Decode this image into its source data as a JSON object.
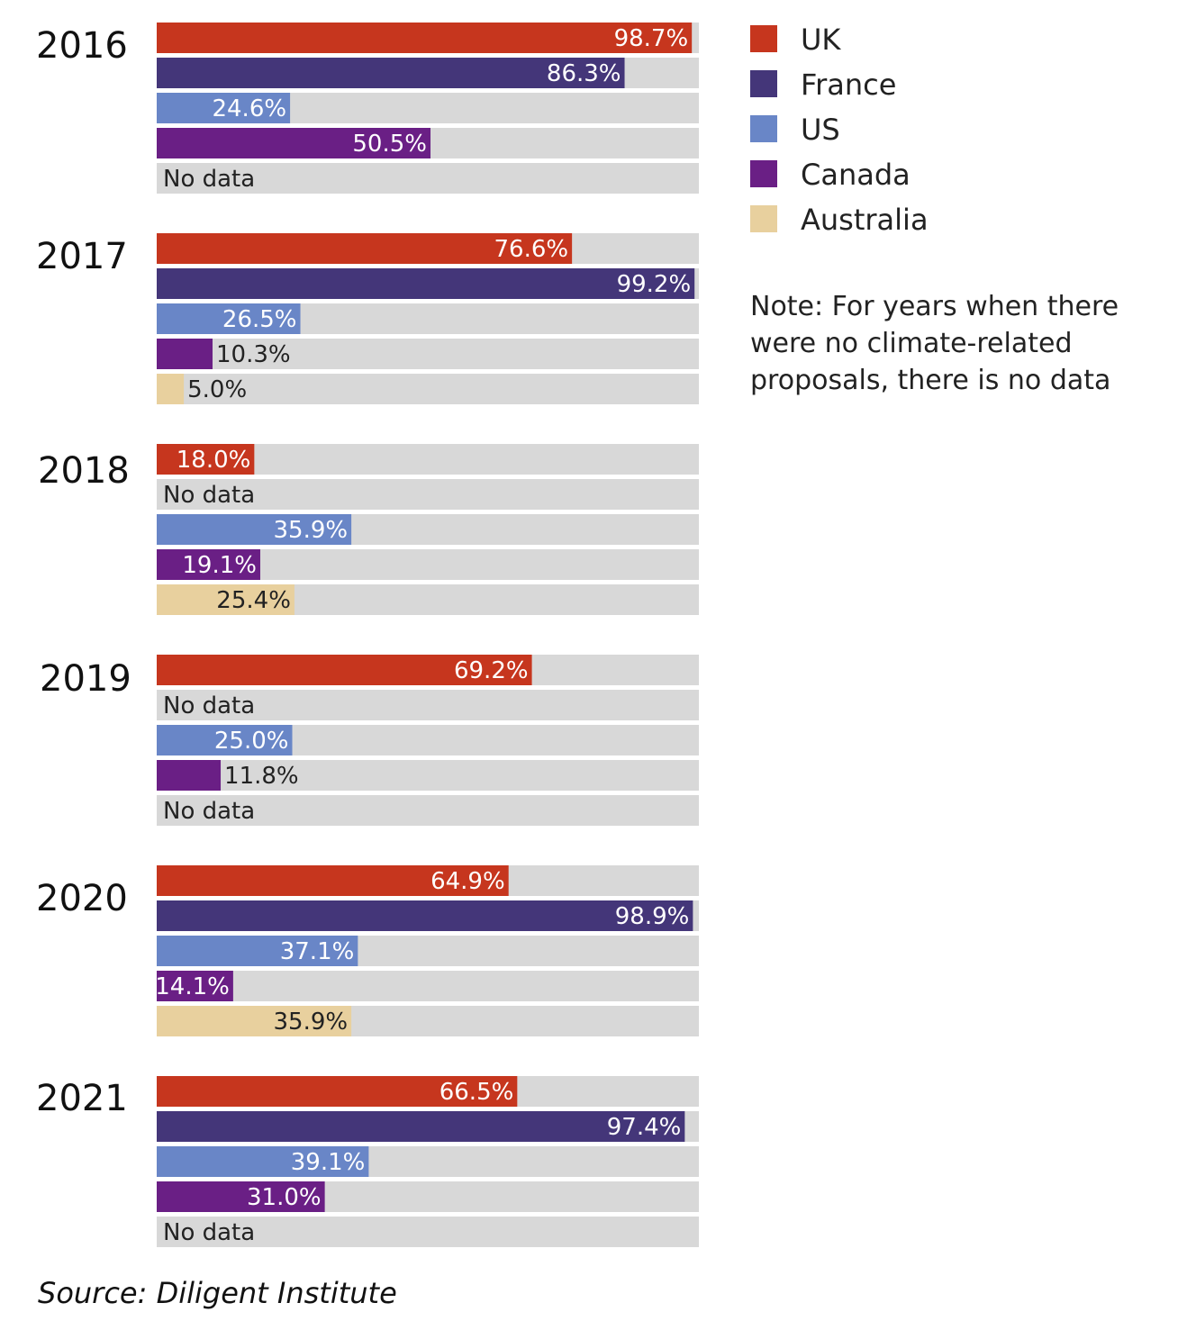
{
  "colors": {
    "UK": "#c6361e",
    "France": "#443679",
    "US": "#6986c7",
    "Canada": "#6a1f85",
    "Australia": "#e8d09e",
    "track": "#d8d8d8"
  },
  "no_data_label": "No data",
  "note_lines": [
    "Note: For years when there",
    "were no climate-related",
    "proposals, there is no data"
  ],
  "source": "Source: Diligent Institute",
  "chart_data": {
    "type": "bar",
    "orientation": "horizontal",
    "x_range": [
      0,
      100
    ],
    "unit": "%",
    "grid": false,
    "legend_position": "top-right",
    "series": [
      {
        "name": "UK",
        "values": [
          98.7,
          76.6,
          18.0,
          69.2,
          64.9,
          66.5
        ]
      },
      {
        "name": "France",
        "values": [
          86.3,
          99.2,
          null,
          null,
          98.9,
          97.4
        ]
      },
      {
        "name": "US",
        "values": [
          24.6,
          26.5,
          35.9,
          25.0,
          37.1,
          39.1
        ]
      },
      {
        "name": "Canada",
        "values": [
          50.5,
          10.3,
          19.1,
          11.8,
          14.1,
          31.0
        ]
      },
      {
        "name": "Australia",
        "values": [
          null,
          5.0,
          25.4,
          null,
          35.9,
          null
        ]
      }
    ],
    "categories": [
      "2016",
      "2017",
      "2018",
      "2019",
      "2020",
      "2021"
    ]
  }
}
